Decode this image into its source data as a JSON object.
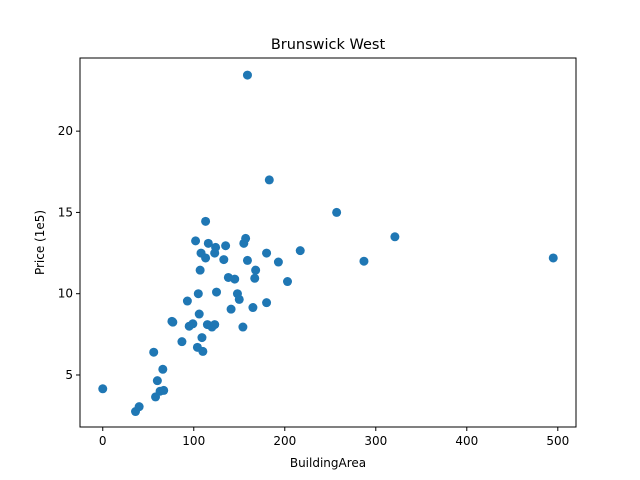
{
  "chart_data": {
    "type": "scatter",
    "title": "Brunswick West",
    "xlabel": "BuildingArea",
    "ylabel": "Price (1e5)",
    "xlim": [
      -25,
      520
    ],
    "ylim": [
      1.8,
      24.5
    ],
    "xticks": [
      0,
      100,
      200,
      300,
      400,
      500
    ],
    "yticks": [
      5,
      10,
      15,
      20
    ],
    "grid": false,
    "marker_color": "#1f77b4",
    "points": [
      [
        0,
        4.15
      ],
      [
        36,
        2.75
      ],
      [
        40,
        3.05
      ],
      [
        56,
        6.4
      ],
      [
        58,
        3.65
      ],
      [
        60,
        4.65
      ],
      [
        63,
        4.0
      ],
      [
        66,
        5.35
      ],
      [
        67,
        4.05
      ],
      [
        76,
        8.3
      ],
      [
        77,
        8.25
      ],
      [
        87,
        7.05
      ],
      [
        93,
        9.55
      ],
      [
        95,
        8.0
      ],
      [
        99,
        8.15
      ],
      [
        102,
        13.25
      ],
      [
        104,
        6.7
      ],
      [
        105,
        10.0
      ],
      [
        106,
        8.75
      ],
      [
        107,
        11.45
      ],
      [
        108,
        12.5
      ],
      [
        109,
        7.3
      ],
      [
        110,
        6.45
      ],
      [
        113,
        12.2
      ],
      [
        113,
        14.45
      ],
      [
        115,
        8.1
      ],
      [
        116,
        13.1
      ],
      [
        120,
        7.95
      ],
      [
        123,
        12.5
      ],
      [
        123,
        8.1
      ],
      [
        124,
        12.85
      ],
      [
        125,
        10.1
      ],
      [
        133,
        12.1
      ],
      [
        135,
        12.95
      ],
      [
        138,
        11.0
      ],
      [
        141,
        9.05
      ],
      [
        145,
        10.9
      ],
      [
        148,
        10.0
      ],
      [
        150,
        9.65
      ],
      [
        154,
        7.95
      ],
      [
        155,
        13.1
      ],
      [
        157,
        13.4
      ],
      [
        159,
        12.05
      ],
      [
        159,
        23.45
      ],
      [
        165,
        9.15
      ],
      [
        167,
        10.95
      ],
      [
        168,
        11.45
      ],
      [
        180,
        12.5
      ],
      [
        180,
        9.45
      ],
      [
        183,
        17.0
      ],
      [
        193,
        11.95
      ],
      [
        203,
        10.75
      ],
      [
        217,
        12.65
      ],
      [
        257,
        15.0
      ],
      [
        287,
        12.0
      ],
      [
        321,
        13.5
      ],
      [
        495,
        12.2
      ]
    ]
  }
}
